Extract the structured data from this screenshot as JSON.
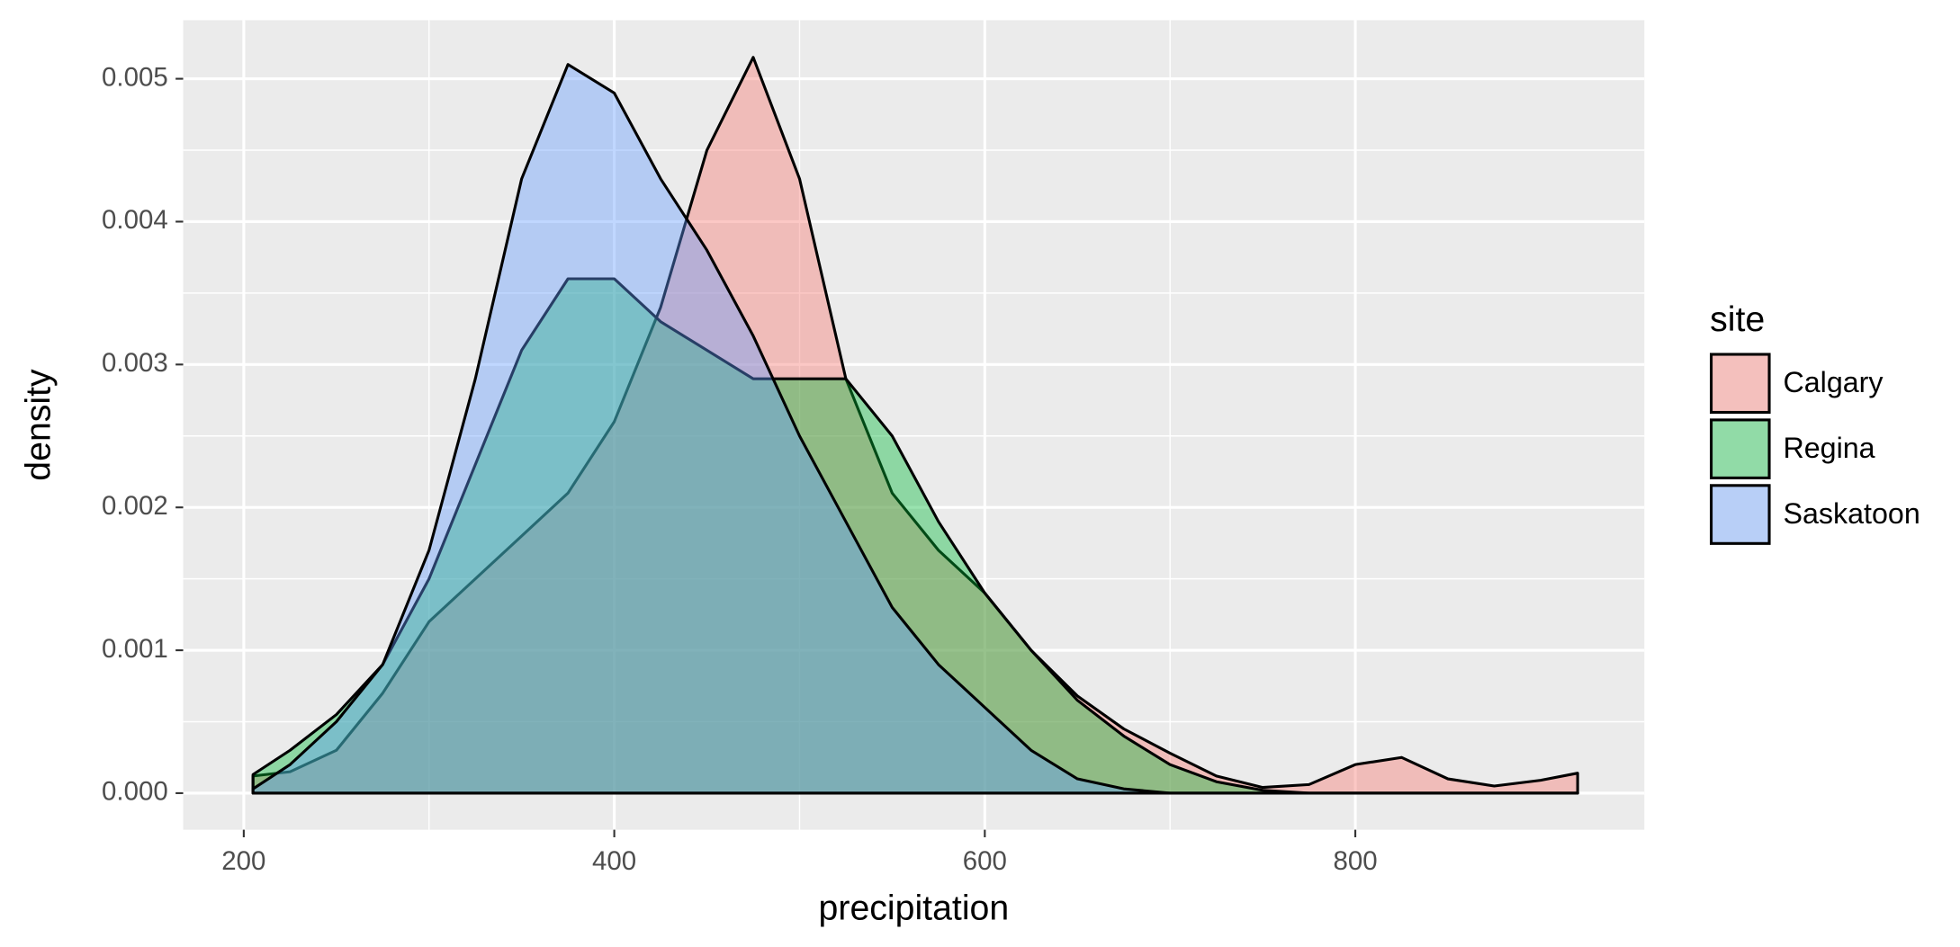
{
  "chart_data": {
    "type": "density",
    "xlabel": "precipitation",
    "ylabel": "density",
    "x": [
      205,
      225,
      250,
      275,
      300,
      325,
      350,
      375,
      400,
      425,
      450,
      475,
      500,
      525,
      550,
      575,
      600,
      625,
      650,
      675,
      700,
      725,
      750,
      775,
      800,
      825,
      850,
      875,
      900,
      920
    ],
    "series": [
      {
        "name": "Calgary",
        "color": "#F8766D",
        "values": [
          0.00012,
          0.00015,
          0.0003,
          0.0007,
          0.0012,
          0.0015,
          0.0018,
          0.0021,
          0.0026,
          0.0034,
          0.0045,
          0.00515,
          0.0043,
          0.0029,
          0.0021,
          0.0017,
          0.0014,
          0.001,
          0.00068,
          0.00045,
          0.00028,
          0.00012,
          4e-05,
          6e-05,
          0.0002,
          0.00025,
          0.0001,
          5e-05,
          9e-05,
          0.00014
        ]
      },
      {
        "name": "Regina",
        "color": "#00BA38",
        "values": [
          0.00013,
          0.0003,
          0.00055,
          0.0009,
          0.0015,
          0.0023,
          0.0031,
          0.0036,
          0.0036,
          0.0033,
          0.0031,
          0.0029,
          0.0029,
          0.0029,
          0.0025,
          0.0019,
          0.0014,
          0.001,
          0.00065,
          0.0004,
          0.0002,
          8e-05,
          2e-05,
          0,
          0,
          0,
          0,
          0,
          0,
          0
        ]
      },
      {
        "name": "Saskatoon",
        "color": "#619CFF",
        "values": [
          3e-05,
          0.0002,
          0.0005,
          0.0009,
          0.0017,
          0.0029,
          0.0043,
          0.0051,
          0.0049,
          0.0043,
          0.0038,
          0.0032,
          0.0025,
          0.0019,
          0.0013,
          0.0009,
          0.0006,
          0.0003,
          0.0001,
          3e-05,
          0,
          0,
          0,
          0,
          0,
          0,
          0,
          0,
          0,
          0
        ]
      }
    ],
    "legend_title": "site",
    "xlim": [
      167.3,
      956
    ],
    "xticks": [
      200,
      400,
      600,
      800
    ],
    "ylim": [
      -0.000256,
      0.00541
    ],
    "yticks": [
      {
        "value": 0,
        "label": "0.000"
      },
      0.001,
      0.002,
      0.003,
      0.004,
      0.005
    ],
    "grid": true,
    "fill_opacity": 0.4,
    "legend_position": "right"
  }
}
